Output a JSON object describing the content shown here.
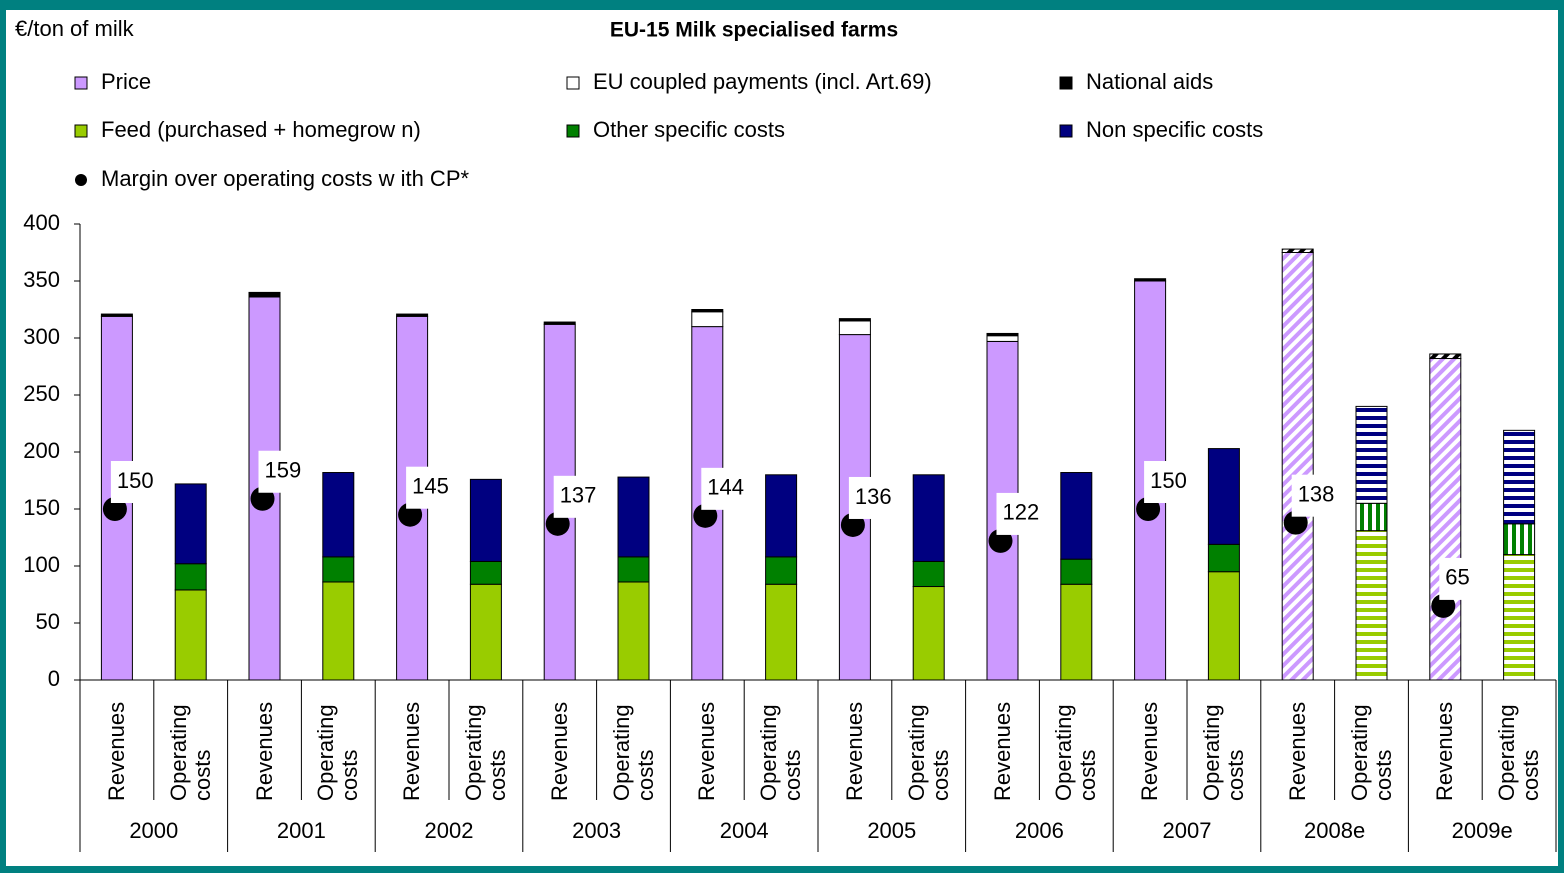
{
  "chart_data": {
    "type": "stacked-bar",
    "title": "EU-15 Milk specialised farms",
    "y_label": "€/ton of milk",
    "categories": [
      "2000",
      "2001",
      "2002",
      "2003",
      "2004",
      "2005",
      "2006",
      "2007",
      "2008e",
      "2009e"
    ],
    "bar_labels": [
      "Revenues",
      "Operating costs"
    ],
    "hatched": [
      false,
      false,
      false,
      false,
      false,
      false,
      false,
      false,
      true,
      true
    ],
    "ylim": [
      0,
      400
    ],
    "yticks": [
      0,
      50,
      100,
      150,
      200,
      250,
      300,
      350,
      400
    ],
    "series": [
      {
        "name": "Price",
        "color": "#cc99ff",
        "group": 0,
        "hatch": "diagonal",
        "values": [
          319,
          336,
          319,
          312,
          310,
          303,
          297,
          350,
          375,
          282
        ]
      },
      {
        "name": "EU coupled payments (incl. Art.69)",
        "color": "#ffffff",
        "group": 0,
        "hatch": "diagonal",
        "values": [
          0,
          0,
          0,
          0,
          13,
          12,
          5,
          0,
          0,
          0
        ]
      },
      {
        "name": "National aids",
        "color": "#000000",
        "group": 0,
        "hatch": "diagonal",
        "values": [
          2,
          4,
          2,
          2,
          2,
          2,
          2,
          2,
          3,
          4
        ]
      },
      {
        "name": "Feed (purchased + homegrow n)",
        "color": "#99cc00",
        "group": 1,
        "hatch": "horizontal",
        "values": [
          79,
          86,
          84,
          86,
          84,
          82,
          84,
          95,
          131,
          110
        ]
      },
      {
        "name": "Other specific costs",
        "color": "#008000",
        "group": 1,
        "hatch": "vertical",
        "values": [
          23,
          22,
          20,
          22,
          24,
          22,
          22,
          24,
          24,
          27
        ]
      },
      {
        "name": "Non specific costs",
        "color": "#000080",
        "group": 1,
        "hatch": "horizontal",
        "values": [
          70,
          74,
          72,
          70,
          72,
          76,
          76,
          84,
          85,
          82
        ]
      }
    ],
    "margin": {
      "name": "Margin over operating costs w ith CP*",
      "color": "#000000",
      "values": [
        150,
        159,
        145,
        137,
        144,
        136,
        122,
        150,
        138,
        65
      ]
    }
  }
}
